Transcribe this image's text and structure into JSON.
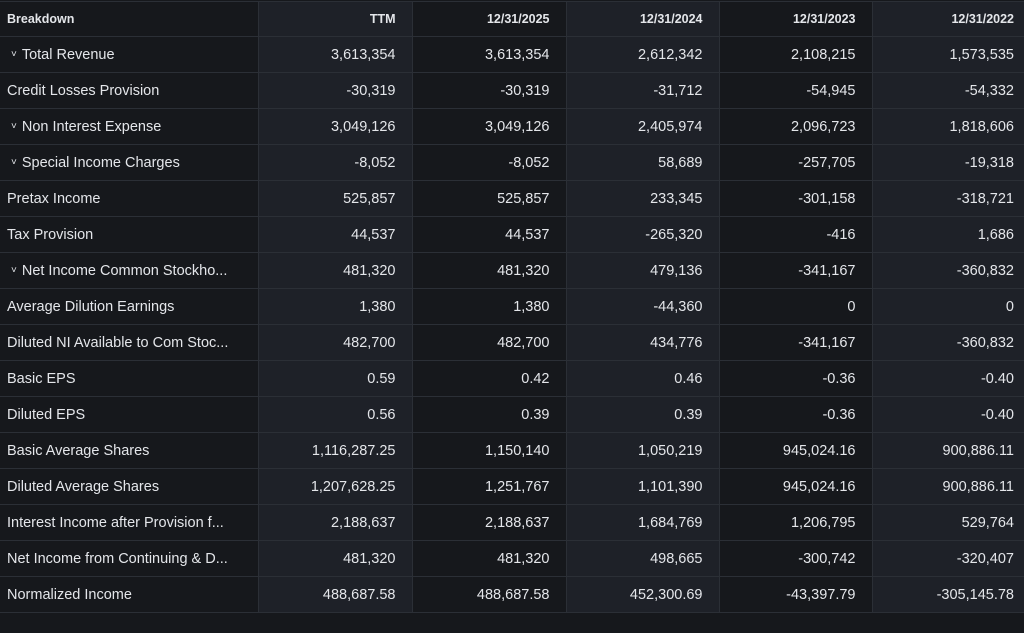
{
  "header": {
    "breakdown": "Breakdown",
    "columns": [
      "TTM",
      "12/31/2025",
      "12/31/2024",
      "12/31/2023",
      "12/31/2022"
    ]
  },
  "rows": [
    {
      "label": "Total Revenue",
      "expandable": true,
      "values": [
        "3,613,354",
        "3,613,354",
        "2,612,342",
        "2,108,215",
        "1,573,535"
      ]
    },
    {
      "label": "Credit Losses Provision",
      "expandable": false,
      "values": [
        "-30,319",
        "-30,319",
        "-31,712",
        "-54,945",
        "-54,332"
      ]
    },
    {
      "label": "Non Interest Expense",
      "expandable": true,
      "values": [
        "3,049,126",
        "3,049,126",
        "2,405,974",
        "2,096,723",
        "1,818,606"
      ]
    },
    {
      "label": "Special Income Charges",
      "expandable": true,
      "values": [
        "-8,052",
        "-8,052",
        "58,689",
        "-257,705",
        "-19,318"
      ]
    },
    {
      "label": "Pretax Income",
      "expandable": false,
      "values": [
        "525,857",
        "525,857",
        "233,345",
        "-301,158",
        "-318,721"
      ]
    },
    {
      "label": "Tax Provision",
      "expandable": false,
      "values": [
        "44,537",
        "44,537",
        "-265,320",
        "-416",
        "1,686"
      ]
    },
    {
      "label": "Net Income Common Stockho...",
      "expandable": true,
      "values": [
        "481,320",
        "481,320",
        "479,136",
        "-341,167",
        "-360,832"
      ]
    },
    {
      "label": "Average Dilution Earnings",
      "expandable": false,
      "values": [
        "1,380",
        "1,380",
        "-44,360",
        "0",
        "0"
      ]
    },
    {
      "label": "Diluted NI Available to Com Stoc...",
      "expandable": false,
      "values": [
        "482,700",
        "482,700",
        "434,776",
        "-341,167",
        "-360,832"
      ]
    },
    {
      "label": "Basic EPS",
      "expandable": false,
      "values": [
        "0.59",
        "0.42",
        "0.46",
        "-0.36",
        "-0.40"
      ]
    },
    {
      "label": "Diluted EPS",
      "expandable": false,
      "values": [
        "0.56",
        "0.39",
        "0.39",
        "-0.36",
        "-0.40"
      ]
    },
    {
      "label": "Basic Average Shares",
      "expandable": false,
      "values": [
        "1,116,287.25",
        "1,150,140",
        "1,050,219",
        "945,024.16",
        "900,886.11"
      ]
    },
    {
      "label": "Diluted Average Shares",
      "expandable": false,
      "values": [
        "1,207,628.25",
        "1,251,767",
        "1,101,390",
        "945,024.16",
        "900,886.11"
      ]
    },
    {
      "label": "Interest Income after Provision f...",
      "expandable": false,
      "values": [
        "2,188,637",
        "2,188,637",
        "1,684,769",
        "1,206,795",
        "529,764"
      ]
    },
    {
      "label": "Net Income from Continuing & D...",
      "expandable": false,
      "values": [
        "481,320",
        "481,320",
        "498,665",
        "-300,742",
        "-320,407"
      ]
    },
    {
      "label": "Normalized Income",
      "expandable": false,
      "values": [
        "488,687.58",
        "488,687.58",
        "452,300.69",
        "-43,397.79",
        "-305,145.78"
      ]
    }
  ],
  "icons": {
    "expand": "chevron-down-icon"
  },
  "colors": {
    "background": "#16181c",
    "alt_column": "#1e2128",
    "border": "#2b2f36",
    "text": "#e4e6ea"
  }
}
